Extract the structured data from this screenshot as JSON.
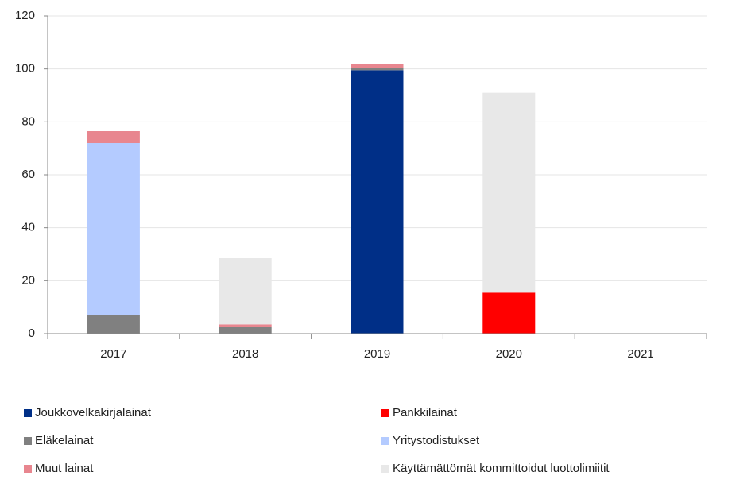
{
  "chart_data": {
    "type": "stacked_bar",
    "categories": [
      "2017",
      "2018",
      "2019",
      "2020",
      "2021"
    ],
    "series": [
      {
        "name": "Joukkovelkakirjalainat",
        "color": "#002f87",
        "values": [
          0,
          0,
          99.5,
          0,
          0
        ]
      },
      {
        "name": "Pankkilainat",
        "color": "#ff0000",
        "values": [
          0,
          0,
          0,
          15.5,
          0
        ]
      },
      {
        "name": "Eläkelainat",
        "color": "#808080",
        "values": [
          7,
          2.5,
          1,
          0,
          0
        ]
      },
      {
        "name": "Yritystodistukset",
        "color": "#b4cbff",
        "values": [
          65,
          0,
          0,
          0,
          0
        ]
      },
      {
        "name": "Muut lainat",
        "color": "#e8868f",
        "values": [
          4.5,
          1,
          1.5,
          0,
          0
        ]
      },
      {
        "name": "Käyttämättömät kommittoidut luottolimiitit",
        "color": "#e8e8e8",
        "values": [
          0,
          25,
          0,
          75.5,
          0
        ]
      }
    ],
    "ylim": [
      0,
      120
    ],
    "yticks": [
      0,
      20,
      40,
      60,
      80,
      100,
      120
    ],
    "grid": true
  }
}
